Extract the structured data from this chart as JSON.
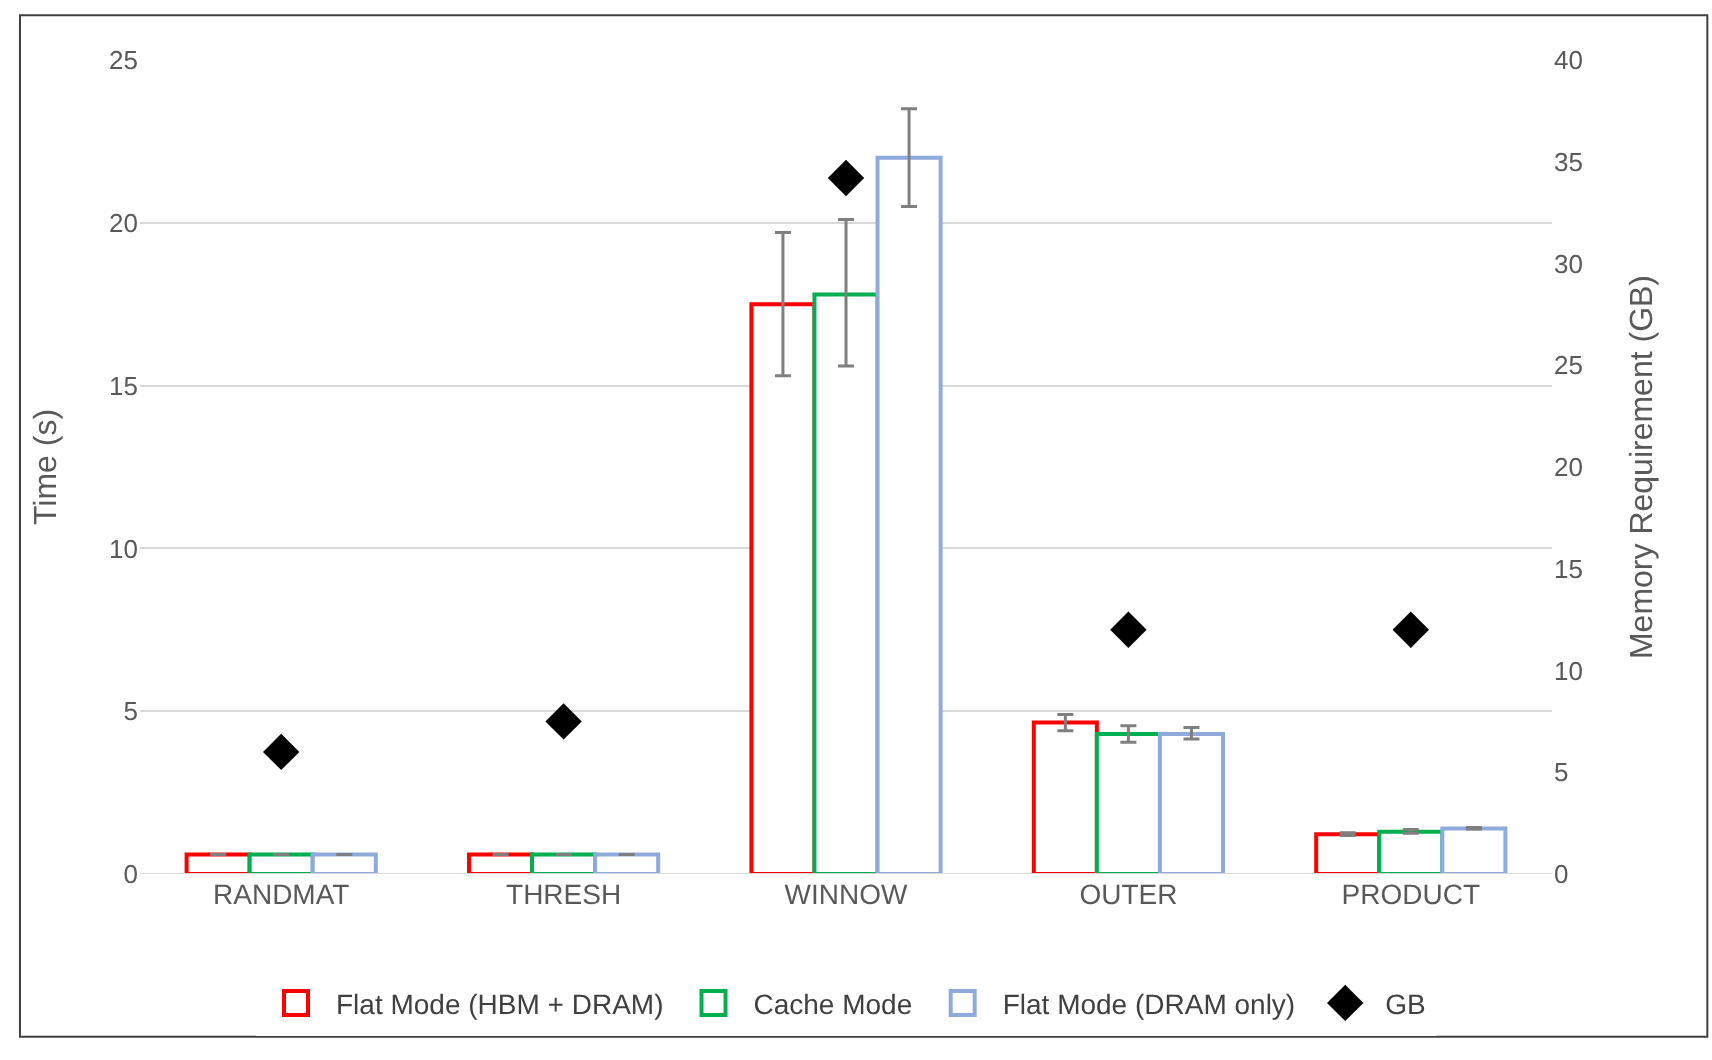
{
  "chart_data": {
    "type": "bar",
    "categories": [
      "RANDMAT",
      "THRESH",
      "WINNOW",
      "OUTER",
      "PRODUCT"
    ],
    "ylabel": "Time (s)",
    "y2label": "Memory Requirement (GB)",
    "ylim": [
      0,
      25
    ],
    "yticks": [
      0,
      5,
      10,
      15,
      20,
      25
    ],
    "y2lim": [
      0,
      40
    ],
    "y2ticks": [
      0,
      5,
      10,
      15,
      20,
      25,
      30,
      35,
      40
    ],
    "series": [
      {
        "name": "Flat Mode (HBM + DRAM)",
        "color": "#ff0000",
        "values": [
          0.6,
          0.6,
          17.5,
          4.65,
          1.22
        ],
        "errors": [
          null,
          null,
          [
            15.3,
            19.7
          ],
          [
            4.4,
            4.9
          ],
          [
            1.18,
            1.27
          ]
        ]
      },
      {
        "name": "Cache Mode",
        "color": "#00b050",
        "values": [
          0.6,
          0.6,
          17.8,
          4.3,
          1.3
        ],
        "errors": [
          null,
          null,
          [
            15.6,
            20.1
          ],
          [
            4.05,
            4.55
          ],
          [
            1.25,
            1.37
          ]
        ]
      },
      {
        "name": "Flat Mode (DRAM only)",
        "color": "#8faadc",
        "values": [
          0.6,
          0.6,
          22.0,
          4.3,
          1.4
        ],
        "errors": [
          null,
          null,
          [
            20.5,
            23.5
          ],
          [
            4.15,
            4.5
          ],
          [
            1.38,
            1.43
          ]
        ]
      },
      {
        "name": "GB",
        "type": "scatter",
        "axis": "y2",
        "marker": "diamond",
        "color": "#000000",
        "values": [
          6,
          7.5,
          34.2,
          12,
          12
        ]
      }
    ],
    "grid": "y",
    "legend": "bottom"
  }
}
